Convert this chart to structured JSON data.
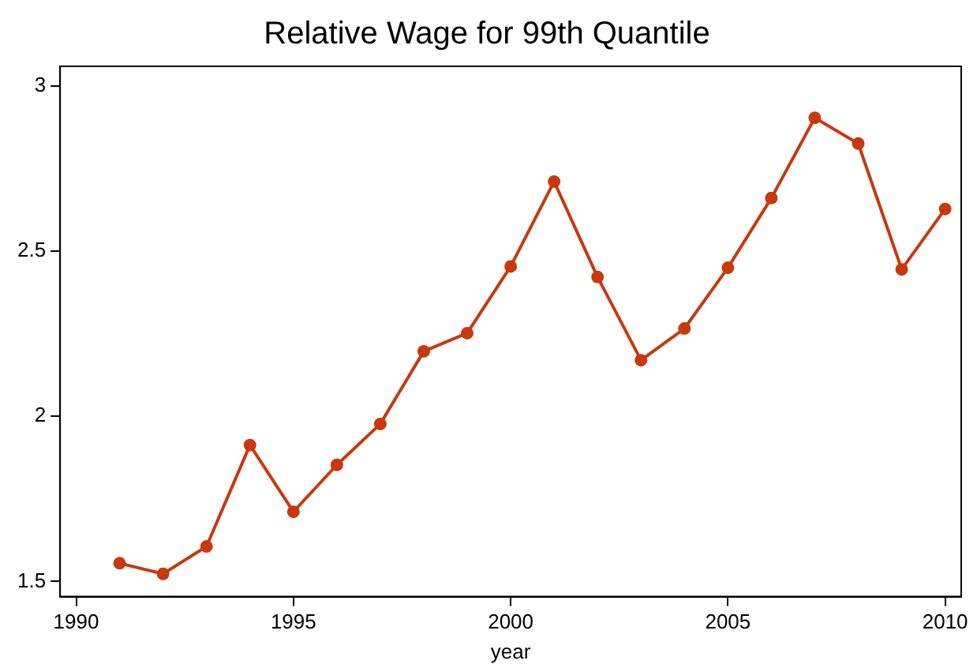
{
  "chart_data": {
    "type": "line",
    "title": "Relative Wage for 99th Quantile",
    "xlabel": "year",
    "x": [
      1991,
      1992,
      1993,
      1994,
      1995,
      1996,
      1997,
      1998,
      1999,
      2000,
      2001,
      2002,
      2003,
      2004,
      2005,
      2006,
      2007,
      2008,
      2009,
      2010
    ],
    "series": [
      {
        "color": "#c8390f",
        "values": [
          1.555,
          1.523,
          1.606,
          1.913,
          1.711,
          1.853,
          1.977,
          2.197,
          2.252,
          2.454,
          2.711,
          2.422,
          2.17,
          2.266,
          2.45,
          2.661,
          2.904,
          2.826,
          2.445,
          2.628
        ]
      }
    ],
    "xlim": [
      1989.63,
      2010.37
    ],
    "xticks": [
      1990,
      1995,
      2000,
      2005,
      2010
    ],
    "ylim": [
      1.454,
      3.06
    ],
    "yticks": [
      1.5,
      2,
      2.5,
      3
    ],
    "grid": false,
    "legend": false,
    "marker": "circle",
    "line_style": "solid"
  }
}
